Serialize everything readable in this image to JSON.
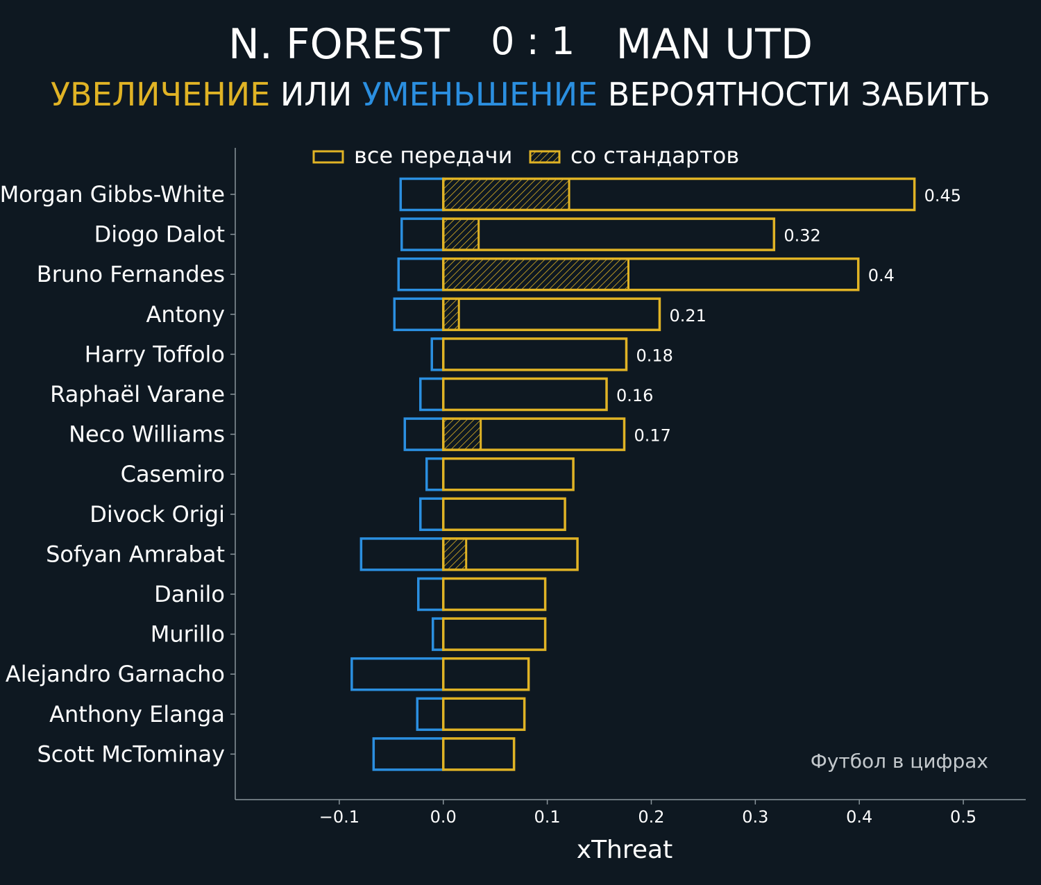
{
  "header": {
    "home_team": "N. FOREST",
    "score": "0 : 1",
    "away_team": "MAN UTD"
  },
  "subtitle": {
    "part1": "УВЕЛИЧЕНИЕ",
    "part2": " ИЛИ ",
    "part3": "УМЕНЬШЕНИЕ",
    "part4": " ВЕРОЯТНОСТИ ЗАБИТЬ"
  },
  "colors": {
    "background": "#0e1821",
    "increase": "#e0b325",
    "decrease": "#2b8fe0",
    "axis": "#8a959c",
    "text": "#ffffff"
  },
  "watermark": "Футбол в цифрах",
  "chart_data": {
    "type": "bar",
    "orientation": "horizontal",
    "xlabel": "xThreat",
    "xlim": [
      -0.2,
      0.56
    ],
    "xticks": [
      -0.1,
      0.0,
      0.1,
      0.2,
      0.3,
      0.4,
      0.5
    ],
    "xtick_labels": [
      "−0.1",
      "0.0",
      "0.1",
      "0.2",
      "0.3",
      "0.4",
      "0.5"
    ],
    "legend": {
      "placement": "top-center",
      "entries": [
        "все передачи",
        "со стандартов"
      ]
    },
    "categories": [
      "Morgan Gibbs-White",
      "Diogo Dalot",
      "Bruno Fernandes",
      "Antony",
      "Harry Toffolo",
      "Raphaël Varane",
      "Neco Williams",
      "Casemiro",
      "Divock Origi",
      "Sofyan Amrabat",
      "Danilo",
      "Murillo",
      "Alejandro Garnacho",
      "Anthony Elanga",
      "Scott McTominay"
    ],
    "series": [
      {
        "name": "все передачи",
        "values": [
          0.453,
          0.318,
          0.399,
          0.208,
          0.176,
          0.157,
          0.174,
          0.125,
          0.117,
          0.129,
          0.098,
          0.098,
          0.082,
          0.078,
          0.068
        ]
      },
      {
        "name": "со стандартов",
        "values": [
          0.121,
          0.034,
          0.178,
          0.015,
          0,
          0,
          0.036,
          0,
          0,
          0.022,
          0,
          0,
          0,
          0,
          0
        ]
      },
      {
        "values": [
          -0.041,
          -0.04,
          -0.043,
          -0.047,
          -0.011,
          -0.022,
          -0.037,
          -0.016,
          -0.022,
          -0.079,
          -0.024,
          -0.01,
          -0.088,
          -0.025,
          -0.067
        ]
      }
    ],
    "data_labels": [
      "0.45",
      "0.32",
      "0.4",
      "0.21",
      "0.18",
      "0.16",
      "0.17",
      "",
      "",
      "",
      "",
      "",
      "",
      "",
      ""
    ]
  }
}
